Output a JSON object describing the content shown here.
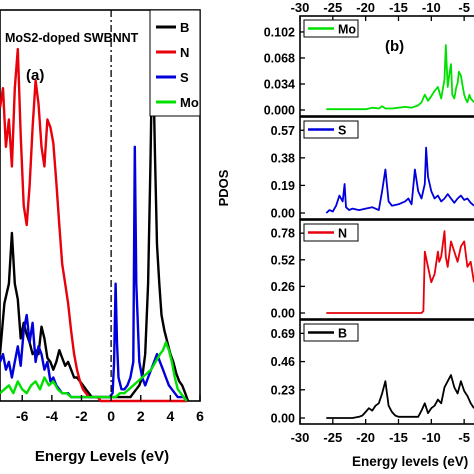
{
  "chart_data": [
    {
      "type": "line",
      "panel_label": "(a)",
      "title": "MoS2-doped SWBNNT",
      "xlabel": "Energy Levels (eV)",
      "ylabel": "",
      "xlim": [
        -7.5,
        6
      ],
      "ylim": [
        0,
        1
      ],
      "x_ticks": [
        -6,
        -4,
        -2,
        0,
        2,
        4,
        6
      ],
      "x_tick_labels": [
        "-6",
        "-4",
        "-2",
        "0",
        "2",
        "4",
        "6"
      ],
      "fermi_level": 0,
      "legend_position": "top-right",
      "series": [
        {
          "name": "B",
          "color": "#000000",
          "x": [
            -7.5,
            -7.2,
            -6.9,
            -6.7,
            -6.5,
            -6.3,
            -6.1,
            -5.9,
            -5.7,
            -5.5,
            -5.3,
            -5.1,
            -4.9,
            -4.7,
            -4.5,
            -4.3,
            -4.1,
            -3.9,
            -3.7,
            -3.5,
            -3.3,
            -3.1,
            -2.9,
            -2.7,
            -2.5,
            -2.3,
            -2.1,
            -1.9,
            -1.7,
            -1.5,
            -1.3,
            -1.1,
            -0.9,
            -0.7,
            -0.5,
            -0.3,
            -0.1,
            0.1,
            0.3,
            0.5,
            0.7,
            0.9,
            1.1,
            1.3,
            1.5,
            1.7,
            1.9,
            2.1,
            2.3,
            2.5,
            2.65,
            2.8,
            2.95,
            3.1,
            3.25,
            3.4,
            3.6,
            3.8,
            4.0,
            4.2,
            4.4,
            4.6,
            4.8,
            5.0,
            5.2
          ],
          "y": [
            0.12,
            0.25,
            0.3,
            0.43,
            0.3,
            0.26,
            0.16,
            0.2,
            0.17,
            0.15,
            0.12,
            0.13,
            0.12,
            0.19,
            0.16,
            0.11,
            0.1,
            0.08,
            0.1,
            0.13,
            0.11,
            0.09,
            0.1,
            0.08,
            0.06,
            0.06,
            0.05,
            0.04,
            0.03,
            0.02,
            0.01,
            0.01,
            0.01,
            0.01,
            0.01,
            0.01,
            0.01,
            0.01,
            0.01,
            0.01,
            0.01,
            0.01,
            0.01,
            0.01,
            0.02,
            0.03,
            0.04,
            0.06,
            0.12,
            0.3,
            0.6,
            0.95,
            0.65,
            0.4,
            0.3,
            0.22,
            0.18,
            0.15,
            0.12,
            0.1,
            0.07,
            0.05,
            0.04,
            0.02,
            0.0
          ]
        },
        {
          "name": "N",
          "color": "#e8000b",
          "x": [
            -7.5,
            -7.3,
            -7.1,
            -6.9,
            -6.7,
            -6.5,
            -6.3,
            -6.1,
            -5.9,
            -5.7,
            -5.5,
            -5.3,
            -5.1,
            -4.9,
            -4.7,
            -4.5,
            -4.3,
            -4.1,
            -3.9,
            -3.7,
            -3.5,
            -3.3,
            -3.1,
            -2.9,
            -2.7,
            -2.5,
            -2.3,
            -2.1,
            -1.9,
            -1.7,
            -1.5,
            -1.3,
            -1.1,
            -0.9,
            -0.7,
            -0.5,
            -0.3,
            -0.1,
            0.1,
            0.3,
            0.5,
            0.7,
            0.9,
            1.1,
            1.3,
            1.5,
            1.7,
            1.9,
            2.1,
            2.3,
            2.5,
            2.7,
            2.9,
            3.1,
            3.3,
            3.5,
            3.7,
            3.9,
            4.1,
            4.3,
            4.5,
            4.7,
            4.9,
            5.1
          ],
          "y": [
            0.75,
            0.8,
            0.65,
            0.72,
            0.6,
            0.8,
            0.9,
            0.68,
            0.5,
            0.45,
            0.55,
            0.7,
            0.82,
            0.76,
            0.65,
            0.6,
            0.72,
            0.7,
            0.66,
            0.56,
            0.45,
            0.35,
            0.3,
            0.25,
            0.18,
            0.12,
            0.08,
            0.05,
            0.03,
            0.02,
            0.01,
            0.01,
            0.01,
            0.01,
            0.0,
            0.0,
            0.0,
            0.0,
            0.0,
            0.0,
            0.0,
            0.0,
            0.0,
            0.0,
            0.0,
            0.0,
            0.0,
            0.0,
            0.0,
            0.0,
            0.0,
            0.0,
            0.0,
            0.0,
            0.0,
            0.0,
            0.0,
            0.0,
            0.0,
            0.0,
            0.0,
            0.0,
            0.0,
            0.0
          ]
        },
        {
          "name": "S",
          "color": "#0000dc",
          "x": [
            -7.5,
            -7.3,
            -7.1,
            -6.9,
            -6.7,
            -6.5,
            -6.3,
            -6.1,
            -5.9,
            -5.7,
            -5.5,
            -5.3,
            -5.1,
            -4.9,
            -4.7,
            -4.5,
            -4.3,
            -4.1,
            -3.9,
            -3.7,
            -3.5,
            -3.3,
            -3.1,
            -2.9,
            -2.7,
            -2.5,
            -2.3,
            -2.1,
            -1.9,
            -1.7,
            -1.5,
            -1.3,
            -1.1,
            -0.9,
            -0.7,
            -0.5,
            -0.3,
            -0.1,
            0.1,
            0.2,
            0.3,
            0.4,
            0.5,
            0.7,
            0.9,
            1.1,
            1.3,
            1.5,
            1.6,
            1.7,
            1.9,
            2.1,
            2.3,
            2.5,
            2.7,
            2.9,
            3.1,
            3.3,
            3.5,
            3.7,
            3.9,
            4.1,
            4.3,
            4.5,
            4.7,
            4.9,
            5.1
          ],
          "y": [
            0.1,
            0.12,
            0.08,
            0.1,
            0.06,
            0.1,
            0.14,
            0.09,
            0.18,
            0.22,
            0.15,
            0.2,
            0.1,
            0.14,
            0.12,
            0.08,
            0.1,
            0.05,
            0.06,
            0.04,
            0.03,
            0.02,
            0.02,
            0.02,
            0.01,
            0.01,
            0.01,
            0.01,
            0.01,
            0.01,
            0.01,
            0.01,
            0.01,
            0.01,
            0.01,
            0.01,
            0.01,
            0.01,
            0.02,
            0.1,
            0.3,
            0.15,
            0.06,
            0.03,
            0.03,
            0.04,
            0.06,
            0.1,
            0.65,
            0.3,
            0.1,
            0.06,
            0.04,
            0.06,
            0.08,
            0.1,
            0.12,
            0.1,
            0.08,
            0.06,
            0.04,
            0.03,
            0.02,
            0.01,
            0.01,
            0.01,
            0.0
          ]
        },
        {
          "name": "Mo",
          "color": "#00e000",
          "x": [
            -7.5,
            -7.2,
            -6.9,
            -6.6,
            -6.3,
            -6.0,
            -5.7,
            -5.4,
            -5.1,
            -4.8,
            -4.5,
            -4.2,
            -3.9,
            -3.6,
            -3.3,
            -3.0,
            -2.7,
            -2.4,
            -2.1,
            -1.8,
            -1.5,
            -1.2,
            -0.9,
            -0.6,
            -0.3,
            0.0,
            0.3,
            0.6,
            0.9,
            1.2,
            1.5,
            1.8,
            2.1,
            2.4,
            2.7,
            3.0,
            3.3,
            3.5,
            3.7,
            3.9,
            4.1,
            4.3,
            4.5,
            4.7,
            4.9,
            5.1
          ],
          "y": [
            0.02,
            0.03,
            0.04,
            0.02,
            0.05,
            0.03,
            0.02,
            0.04,
            0.05,
            0.03,
            0.06,
            0.04,
            0.05,
            0.03,
            0.02,
            0.02,
            0.01,
            0.01,
            0.01,
            0.01,
            0.01,
            0.01,
            0.01,
            0.01,
            0.01,
            0.01,
            0.01,
            0.02,
            0.02,
            0.03,
            0.04,
            0.05,
            0.06,
            0.07,
            0.08,
            0.1,
            0.12,
            0.13,
            0.15,
            0.13,
            0.1,
            0.06,
            0.03,
            0.02,
            0.01,
            0.0
          ]
        }
      ]
    },
    {
      "type": "line",
      "panel_label": "(b)",
      "title": "",
      "xlabel": "Energy levels (eV)",
      "ylabel": "PDOS",
      "xlim": [
        -30,
        -3.5
      ],
      "x_ticks": [
        -30,
        -25,
        -20,
        -15,
        -10,
        -5
      ],
      "x_tick_labels": [
        "-30",
        "-25",
        "-20",
        "-15",
        "-10",
        "-5"
      ],
      "legend_position": "top-left",
      "subplots": [
        {
          "name": "Mo",
          "color": "#00e000",
          "ylim": [
            0,
            0.115
          ],
          "y_ticks": [
            0.0,
            0.034,
            0.068,
            0.102
          ],
          "y_tick_labels": [
            "0.000",
            "0.034",
            "0.068",
            "0.102"
          ],
          "x": [
            -26,
            -25,
            -24,
            -23,
            -22,
            -21,
            -20,
            -19,
            -18,
            -17.5,
            -17,
            -16,
            -15,
            -14,
            -13,
            -12,
            -11.5,
            -11,
            -10.5,
            -10,
            -9.5,
            -9,
            -8.5,
            -8,
            -7.8,
            -7.5,
            -7.2,
            -7,
            -6.8,
            -6.5,
            -6.2,
            -6,
            -5.8,
            -5.5,
            -5.2,
            -5,
            -4.8,
            -4.5,
            -4.2,
            -4,
            -3.5
          ],
          "y": [
            0.001,
            0.001,
            0.001,
            0.001,
            0.001,
            0.001,
            0.001,
            0.003,
            0.002,
            0.005,
            0.002,
            0.002,
            0.003,
            0.004,
            0.003,
            0.006,
            0.01,
            0.02,
            0.012,
            0.018,
            0.025,
            0.03,
            0.015,
            0.04,
            0.085,
            0.03,
            0.05,
            0.06,
            0.02,
            0.015,
            0.03,
            0.035,
            0.05,
            0.045,
            0.03,
            0.02,
            0.015,
            0.01,
            0.02,
            0.015,
            0.01
          ]
        },
        {
          "name": "S",
          "color": "#0000dc",
          "ylim": [
            0,
            0.62
          ],
          "y_ticks": [
            0.0,
            0.19,
            0.38,
            0.57
          ],
          "y_tick_labels": [
            "0.00",
            "0.19",
            "0.38",
            "0.57"
          ],
          "x": [
            -26,
            -25.5,
            -25,
            -24.5,
            -24,
            -23.5,
            -23.2,
            -23,
            -22.5,
            -22,
            -21,
            -20,
            -19,
            -18,
            -17.5,
            -17,
            -16.5,
            -16,
            -15,
            -14,
            -13.5,
            -13,
            -12.5,
            -12,
            -11.5,
            -11,
            -10.8,
            -10.5,
            -10,
            -9.5,
            -9,
            -8.5,
            -8,
            -7.5,
            -7,
            -6.5,
            -6,
            -5.5,
            -5,
            -4.5,
            -4,
            -3.5
          ],
          "y": [
            0.0,
            0.02,
            0.01,
            0.05,
            0.12,
            0.08,
            0.2,
            0.04,
            0.02,
            0.03,
            0.02,
            0.03,
            0.04,
            0.02,
            0.15,
            0.3,
            0.08,
            0.05,
            0.06,
            0.08,
            0.1,
            0.06,
            0.3,
            0.15,
            0.1,
            0.2,
            0.45,
            0.25,
            0.15,
            0.1,
            0.12,
            0.08,
            0.1,
            0.13,
            0.1,
            0.07,
            0.1,
            0.12,
            0.09,
            0.1,
            0.07,
            0.05
          ]
        },
        {
          "name": "N",
          "color": "#e8000b",
          "ylim": [
            0,
            0.85
          ],
          "y_ticks": [
            0.0,
            0.26,
            0.52,
            0.78
          ],
          "y_tick_labels": [
            "0.00",
            "0.26",
            "0.52",
            "0.78"
          ],
          "x": [
            -26,
            -25,
            -24,
            -23,
            -22,
            -21,
            -20,
            -19,
            -18,
            -17,
            -16,
            -15,
            -14,
            -13,
            -12,
            -11.5,
            -11.2,
            -11,
            -10.5,
            -10,
            -9.5,
            -9,
            -8.8,
            -8.5,
            -8,
            -7.8,
            -7.5,
            -7,
            -6.5,
            -6,
            -5.5,
            -5,
            -4.5,
            -4,
            -3.5
          ],
          "y": [
            0,
            0,
            0,
            0,
            0,
            0,
            0,
            0,
            0,
            0,
            0,
            0,
            0,
            0,
            0,
            0.0,
            0.02,
            0.6,
            0.45,
            0.3,
            0.38,
            0.6,
            0.5,
            0.55,
            0.8,
            0.55,
            0.45,
            0.7,
            0.6,
            0.5,
            0.65,
            0.7,
            0.45,
            0.5,
            0.3
          ]
        },
        {
          "name": "B",
          "color": "#000000",
          "ylim": [
            0,
            0.75
          ],
          "y_ticks": [
            0.0,
            0.23,
            0.46,
            0.69
          ],
          "y_tick_labels": [
            "0.00",
            "0.23",
            "0.46",
            "0.69"
          ],
          "x": [
            -26,
            -25,
            -24,
            -23,
            -22,
            -21,
            -20.5,
            -20,
            -19.5,
            -19,
            -18.5,
            -18,
            -17.5,
            -17,
            -16.5,
            -16,
            -15.5,
            -15,
            -14,
            -13,
            -12,
            -11.5,
            -11,
            -10.5,
            -10,
            -9.5,
            -9,
            -8.5,
            -8,
            -7.5,
            -7,
            -6.5,
            -6,
            -5.5,
            -5,
            -4.5,
            -4,
            -3.5
          ],
          "y": [
            0.0,
            0.0,
            0.0,
            0.0,
            0.0,
            0.01,
            0.02,
            0.05,
            0.08,
            0.06,
            0.1,
            0.12,
            0.2,
            0.3,
            0.1,
            0.05,
            0.02,
            0.01,
            0.01,
            0.01,
            0.01,
            0.06,
            0.12,
            0.04,
            0.08,
            0.1,
            0.15,
            0.12,
            0.25,
            0.3,
            0.35,
            0.25,
            0.2,
            0.3,
            0.22,
            0.18,
            0.12,
            0.08
          ]
        }
      ]
    }
  ]
}
